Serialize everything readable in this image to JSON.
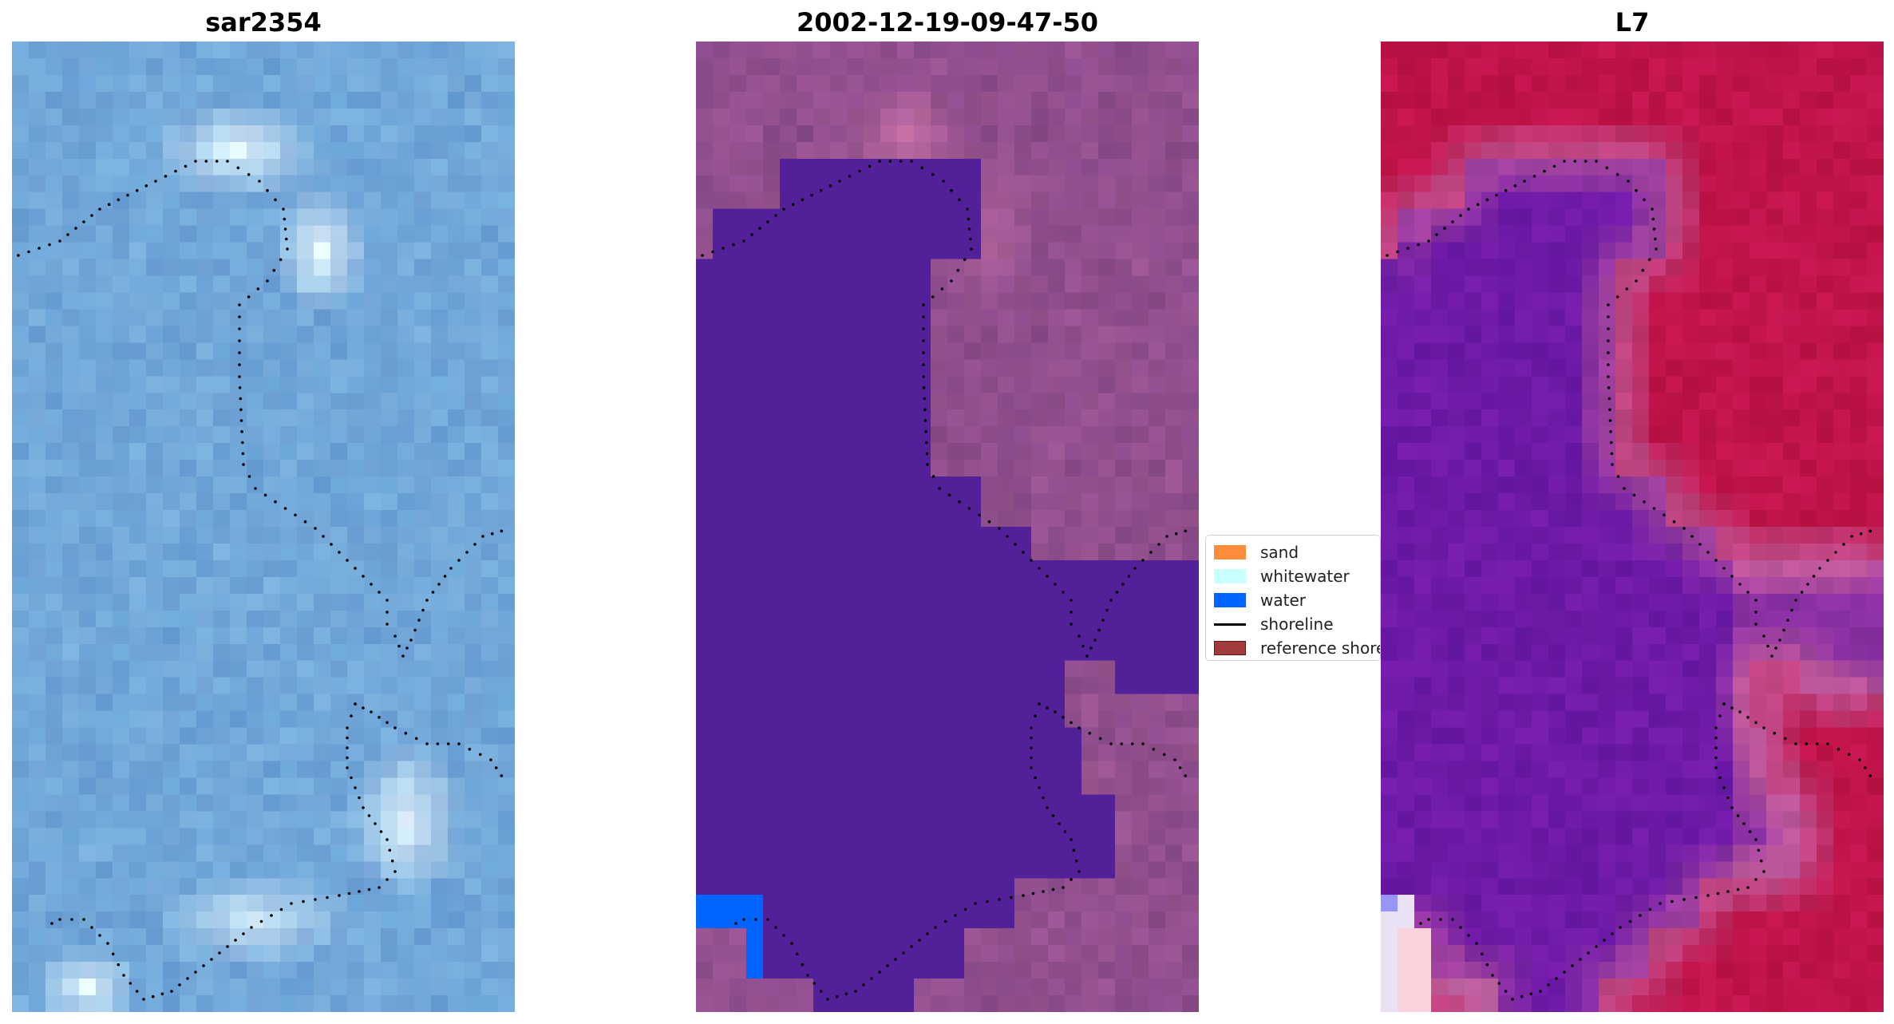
{
  "panels": [
    {
      "id": "sar",
      "title": "sar2354"
    },
    {
      "id": "classified",
      "title": "2002-12-19-09-47-50"
    },
    {
      "id": "index",
      "title": "L7"
    }
  ],
  "legend": {
    "entries": [
      {
        "label": "sand",
        "kind": "patch",
        "color": "#ff8c3a"
      },
      {
        "label": "whitewater",
        "kind": "patch",
        "color": "#c8ffff"
      },
      {
        "label": "water",
        "kind": "patch",
        "color": "#0064ff"
      },
      {
        "label": "shoreline",
        "kind": "line",
        "color": "#000000"
      },
      {
        "label": "reference shoreline",
        "kind": "patch",
        "color": "#a03c3c"
      }
    ]
  },
  "colors": {
    "sar_base": "#6aa2d6",
    "sar_bright": "#e8f8ff",
    "classified_water": "#522098",
    "classified_land": "#8a4b8c",
    "classified_shallow_water": "#0064ff",
    "index_water": "#6e1aa8",
    "index_land": "#c0144a",
    "index_transition": "#c05a9a",
    "shoreline_dots": "#000000"
  }
}
